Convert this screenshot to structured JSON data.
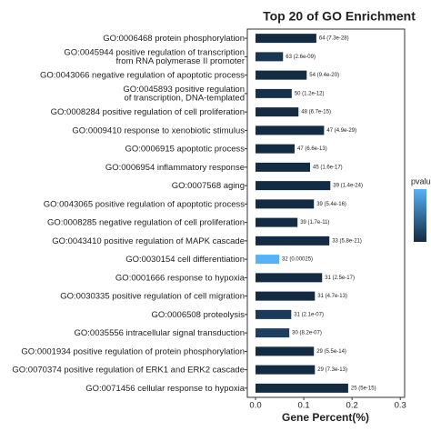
{
  "chart_data": {
    "type": "barh",
    "title": "Top 20 of GO Enrichment",
    "x_label": "Gene Percent(%)",
    "legend_title": "pvalue",
    "categories": [
      [
        "GO:0006468 protein phosphorylation"
      ],
      [
        "GO:0045944 positive regulation of transcription",
        "from RNA polymerase II promoter"
      ],
      [
        "GO:0043066 negative regulation of apoptotic process"
      ],
      [
        "GO:0045893 positive regulation",
        "of transcription, DNA-templated"
      ],
      [
        "GO:0008284 positive regulation of cell proliferation"
      ],
      [
        "GO:0009410 response to xenobiotic stimulus"
      ],
      [
        "GO:0006915 apoptotic process"
      ],
      [
        "GO:0006954 inflammatory response"
      ],
      [
        "GO:0007568 aging"
      ],
      [
        "GO:0043065 positive regulation of apoptotic process"
      ],
      [
        "GO:0008285 negative regulation of cell proliferation"
      ],
      [
        "GO:0043410 positive regulation of MAPK cascade"
      ],
      [
        "GO:0030154 cell differentiation"
      ],
      [
        "GO:0001666 response to hypoxia"
      ],
      [
        "GO:0030335 positive regulation of cell migration"
      ],
      [
        "GO:0006508 proteolysis"
      ],
      [
        "GO:0035556 intracellular signal transduction"
      ],
      [
        "GO:0001934 positive regulation of protein phosphorylation"
      ],
      [
        "GO:0070374 positive regulation of ERK1 and ERK2 cascade"
      ],
      [
        "GO:0071456 cellular response to hypoxia"
      ]
    ],
    "values": [
      0.126,
      0.057,
      0.106,
      0.075,
      0.089,
      0.142,
      0.081,
      0.113,
      0.155,
      0.121,
      0.087,
      0.153,
      0.049,
      0.138,
      0.123,
      0.074,
      0.07,
      0.121,
      0.123,
      0.192
    ],
    "annotations": [
      "64 (7.3e-28)",
      "63 (2.6e-09)",
      "54 (9.4e-20)",
      "50 (1.2e-12)",
      "48 (6.7e-15)",
      "47 (4.9e-29)",
      "47 (6.6e-13)",
      "45 (1.6e-17)",
      "39 (1.4e-24)",
      "39 (5.4e-16)",
      "39 (1.7e-11)",
      "33 (5.8e-21)",
      "32 (0.00025)",
      "31 (2.5e-17)",
      "31 (4.7e-13)",
      "31 (2.1e-07)",
      "30 (8.2e-07)",
      "29 (5.5e-14)",
      "29 (7.3e-13)",
      "25 (5e-15)"
    ],
    "colors": [
      "#132b43",
      "#183754",
      "#132b43",
      "#15304a",
      "#132b43",
      "#132b43",
      "#132b43",
      "#132b43",
      "#132b43",
      "#132b43",
      "#132b43",
      "#132b43",
      "#56b1f7",
      "#132b43",
      "#132b43",
      "#1a3a5a",
      "#1c3e60",
      "#132b43",
      "#132b43",
      "#132b43"
    ],
    "xlim": [
      -0.017,
      0.309
    ],
    "xticks": [
      {
        "value": 0,
        "label": "0.0"
      },
      0.1,
      0.2,
      0.3
    ]
  }
}
